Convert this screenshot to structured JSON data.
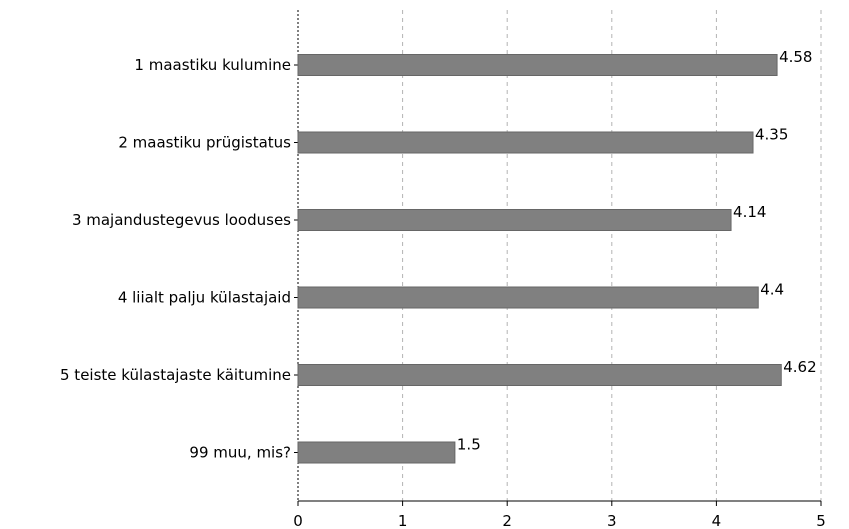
{
  "colors": {
    "bar": "#808080",
    "bar_edge": "#666666",
    "axis": "#000000",
    "grid": "#b3b3b3",
    "text": "#000000",
    "background": "#ffffff"
  },
  "chart_data": {
    "type": "bar",
    "orientation": "horizontal",
    "categories": [
      "1 maastiku kulumine",
      "2 maastiku prügistatus",
      "3 majandustegevus looduses",
      "4 liialt palju külastajaid",
      "5 teiste külastajaste käitumine",
      "99 muu, mis?"
    ],
    "values": [
      4.58,
      4.35,
      4.14,
      4.4,
      4.62,
      1.5
    ],
    "value_labels": [
      "4.58",
      "4.35",
      "4.14",
      "4.4",
      "4.62",
      "1.5"
    ],
    "xlim": [
      0,
      5
    ],
    "x_ticks": [
      "0",
      "1",
      "2",
      "3",
      "4",
      "5"
    ],
    "grid": true,
    "grid_style": "dashed vertical",
    "legend": false,
    "title": "",
    "xlabel": "",
    "ylabel": ""
  }
}
